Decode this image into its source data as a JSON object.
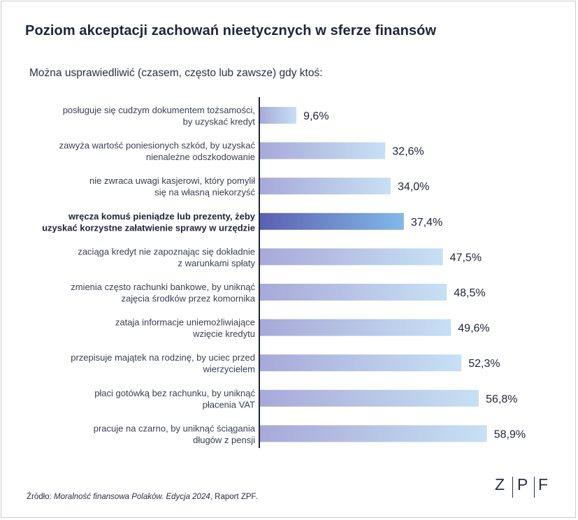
{
  "title": "Poziom akceptacji zachowań nieetycznych w sferze finansów",
  "subtitle": "Można usprawiedliwić (czasem, często lub zawsze) gdy ktoś:",
  "source": {
    "prefix": "Źródło: ",
    "italic": "Moralność finansowa Polaków. Edycja 2024",
    "suffix": ", Raport ZPF."
  },
  "logo": {
    "letters": [
      "Z",
      "P",
      "F"
    ]
  },
  "chart_data": {
    "type": "bar",
    "orientation": "horizontal",
    "title": "Poziom akceptacji zachowań nieetycznych w sferze finansów",
    "subtitle": "Można usprawiedliwić (czasem, często lub zawsze) gdy ktoś:",
    "xlim": [
      0,
      100
    ],
    "grid": false,
    "highlight_index": 3,
    "categories": [
      [
        "posługuje się cudzym dokumentem tożsamości,",
        "by uzyskać kredyt"
      ],
      [
        "zawyża wartość poniesionych szkód, by uzyskać",
        "nienależne odszkodowanie"
      ],
      [
        "nie zwraca uwagi kasjerowi, który pomylił",
        "się na własną niekorzyść"
      ],
      [
        "wręcza komuś pieniądze lub prezenty, żeby",
        "uzyskać korzystne załatwienie sprawy w urzędzie"
      ],
      [
        "zaciąga kredyt nie zapoznając się dokładnie",
        "z warunkami spłaty"
      ],
      [
        "zmienia często rachunki bankowe, by uniknąć",
        "zajęcia środków przez komornika"
      ],
      [
        "zataja informacje uniemożliwiające",
        "wzięcie kredytu"
      ],
      [
        "przepisuje majątek na rodzinę, by uciec przed",
        "wierzycielem"
      ],
      [
        "płaci gotówką bez rachunku, by uniknąć",
        "płacenia VAT"
      ],
      [
        "pracuje na czarno, by uniknąć ściągania",
        "długów z pensji"
      ]
    ],
    "values": [
      9.6,
      32.6,
      34.0,
      37.4,
      47.5,
      48.5,
      49.6,
      52.3,
      56.8,
      58.9
    ],
    "value_labels": [
      "9,6%",
      "32,6%",
      "34,0%",
      "37,4%",
      "47,5%",
      "48,5%",
      "49,6%",
      "52,3%",
      "56,8%",
      "58,9%"
    ],
    "colors": {
      "bar_start": "#a7a9d8",
      "bar_end": "#c7e0f4",
      "highlight_start": "#5b5fb0",
      "highlight_end": "#82b9e8",
      "axis": "#1f2437"
    }
  }
}
